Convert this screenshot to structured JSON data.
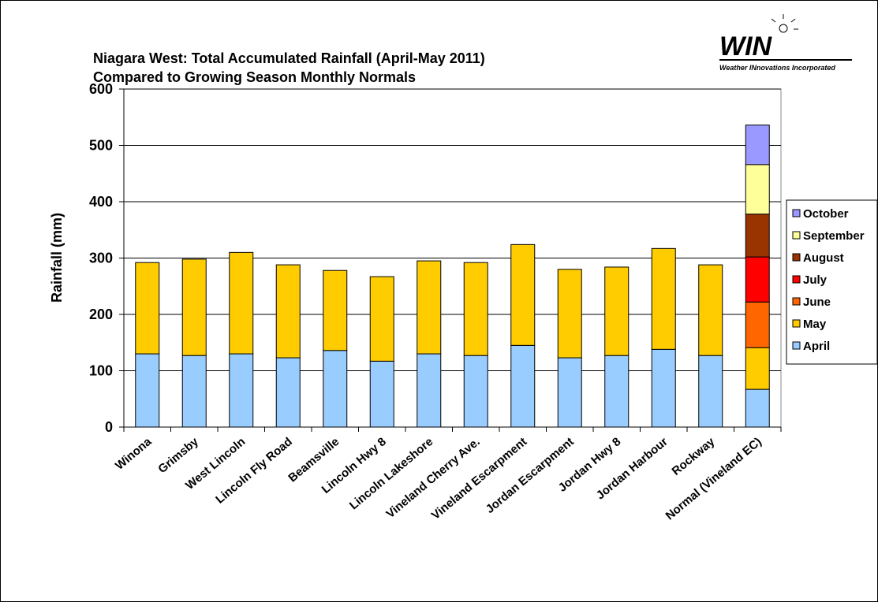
{
  "chart_data": {
    "type": "stacked_bar",
    "title": "Niagara West: Total Accumulated Rainfall (April-May 2011)",
    "subtitle": "Compared to Growing Season Monthly Normals",
    "y_label": "Rainfall (mm)",
    "categories": [
      "Winona",
      "Grimsby",
      "West Lincoln",
      "Lincoln Fly Road",
      "Beamsville",
      "Lincoln Hwy 8",
      "Lincoln Lakeshore",
      "Vineland Cherry Ave.",
      "Vineland Escarpment",
      "Jordan Escarpment",
      "Jordan Hwy 8",
      "Jordan Harbour",
      "Rockway",
      "Normal (Vineland EC)"
    ],
    "series": [
      {
        "name": "April",
        "color": "#99ccff",
        "values": [
          130,
          127,
          130,
          123,
          136,
          117,
          130,
          127,
          145,
          123,
          127,
          138,
          127,
          67
        ]
      },
      {
        "name": "May",
        "color": "#ffcc00",
        "values": [
          162,
          171,
          180,
          165,
          142,
          150,
          165,
          165,
          179,
          157,
          157,
          179,
          161,
          74
        ]
      },
      {
        "name": "June",
        "color": "#ff6600",
        "values": [
          null,
          null,
          null,
          null,
          null,
          null,
          null,
          null,
          null,
          null,
          null,
          null,
          null,
          81
        ]
      },
      {
        "name": "July",
        "color": "#ff0000",
        "values": [
          null,
          null,
          null,
          null,
          null,
          null,
          null,
          null,
          null,
          null,
          null,
          null,
          null,
          80
        ]
      },
      {
        "name": "August",
        "color": "#993300",
        "values": [
          null,
          null,
          null,
          null,
          null,
          null,
          null,
          null,
          null,
          null,
          null,
          null,
          null,
          76
        ]
      },
      {
        "name": "September",
        "color": "#ffff99",
        "values": [
          null,
          null,
          null,
          null,
          null,
          null,
          null,
          null,
          null,
          null,
          null,
          null,
          null,
          88
        ]
      },
      {
        "name": "October",
        "color": "#9999ff",
        "values": [
          null,
          null,
          null,
          null,
          null,
          null,
          null,
          null,
          null,
          null,
          null,
          null,
          null,
          70
        ]
      }
    ],
    "ylim": [
      0,
      600
    ],
    "yticks": [
      0,
      100,
      200,
      300,
      400,
      500,
      600
    ],
    "grid": true,
    "legend": "right"
  },
  "logo": {
    "text": "WIN",
    "tagline": "Weather INnovations Incorporated"
  }
}
